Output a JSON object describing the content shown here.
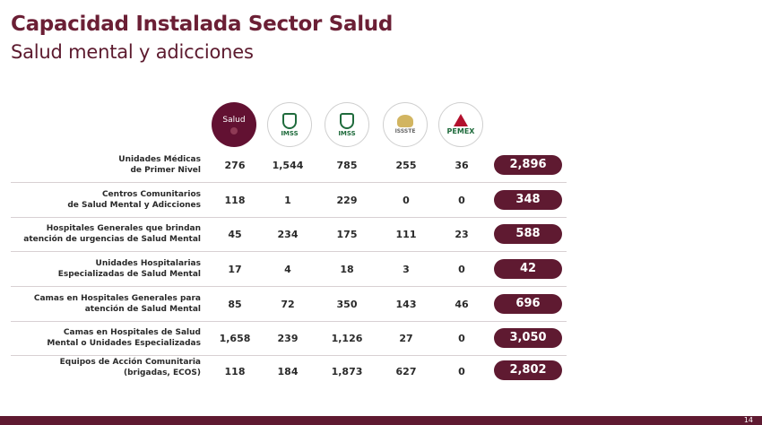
{
  "header": {
    "title": "Capacidad Instalada Sector Salud",
    "subtitle": "Salud mental y adicciones"
  },
  "institutions": [
    {
      "label": "Salud",
      "icon": "salud-logo-icon"
    },
    {
      "label": "IMSS",
      "icon": "imss-logo-icon"
    },
    {
      "label": "IMSS",
      "icon": "imss-bienestar-logo-icon"
    },
    {
      "label": "ISSSTE",
      "icon": "issste-logo-icon"
    },
    {
      "label": "PEMEX",
      "icon": "pemex-logo-icon"
    }
  ],
  "rows": [
    {
      "line1": "Unidades Médicas",
      "line2": "de Primer Nivel",
      "values": [
        "276",
        "1,544",
        "785",
        "255",
        "36"
      ],
      "total": "2,896"
    },
    {
      "line1": "Centros Comunitarios",
      "line2": "de Salud Mental y Adicciones",
      "values": [
        "118",
        "1",
        "229",
        "0",
        "0"
      ],
      "total": "348"
    },
    {
      "line1": "Hospitales Generales que brindan",
      "line2": "atención de urgencias de Salud Mental",
      "values": [
        "45",
        "234",
        "175",
        "111",
        "23"
      ],
      "total": "588"
    },
    {
      "line1": "Unidades Hospitalarias",
      "line2": "Especializadas de Salud Mental",
      "values": [
        "17",
        "4",
        "18",
        "3",
        "0"
      ],
      "total": "42"
    },
    {
      "line1": "Camas en Hospitales Generales para",
      "line2": "atención de Salud Mental",
      "values": [
        "85",
        "72",
        "350",
        "143",
        "46"
      ],
      "total": "696"
    },
    {
      "line1": "Camas en Hospitales de Salud",
      "line2": "Mental o Unidades Especializadas",
      "values": [
        "1,658",
        "239",
        "1,126",
        "27",
        "0"
      ],
      "total": "3,050"
    },
    {
      "line1": "Equipos de Acción Comunitaria",
      "line2": "(brigadas, ECOS)",
      "values": [
        "118",
        "184",
        "1,873",
        "627",
        "0"
      ],
      "total": "2,802"
    }
  ],
  "footer": {
    "page_number": "14"
  },
  "colors": {
    "brand": "#5f1a31",
    "title": "#6b1f35",
    "imss_green": "#1f6b3c",
    "pemex_red": "#b3102d"
  }
}
